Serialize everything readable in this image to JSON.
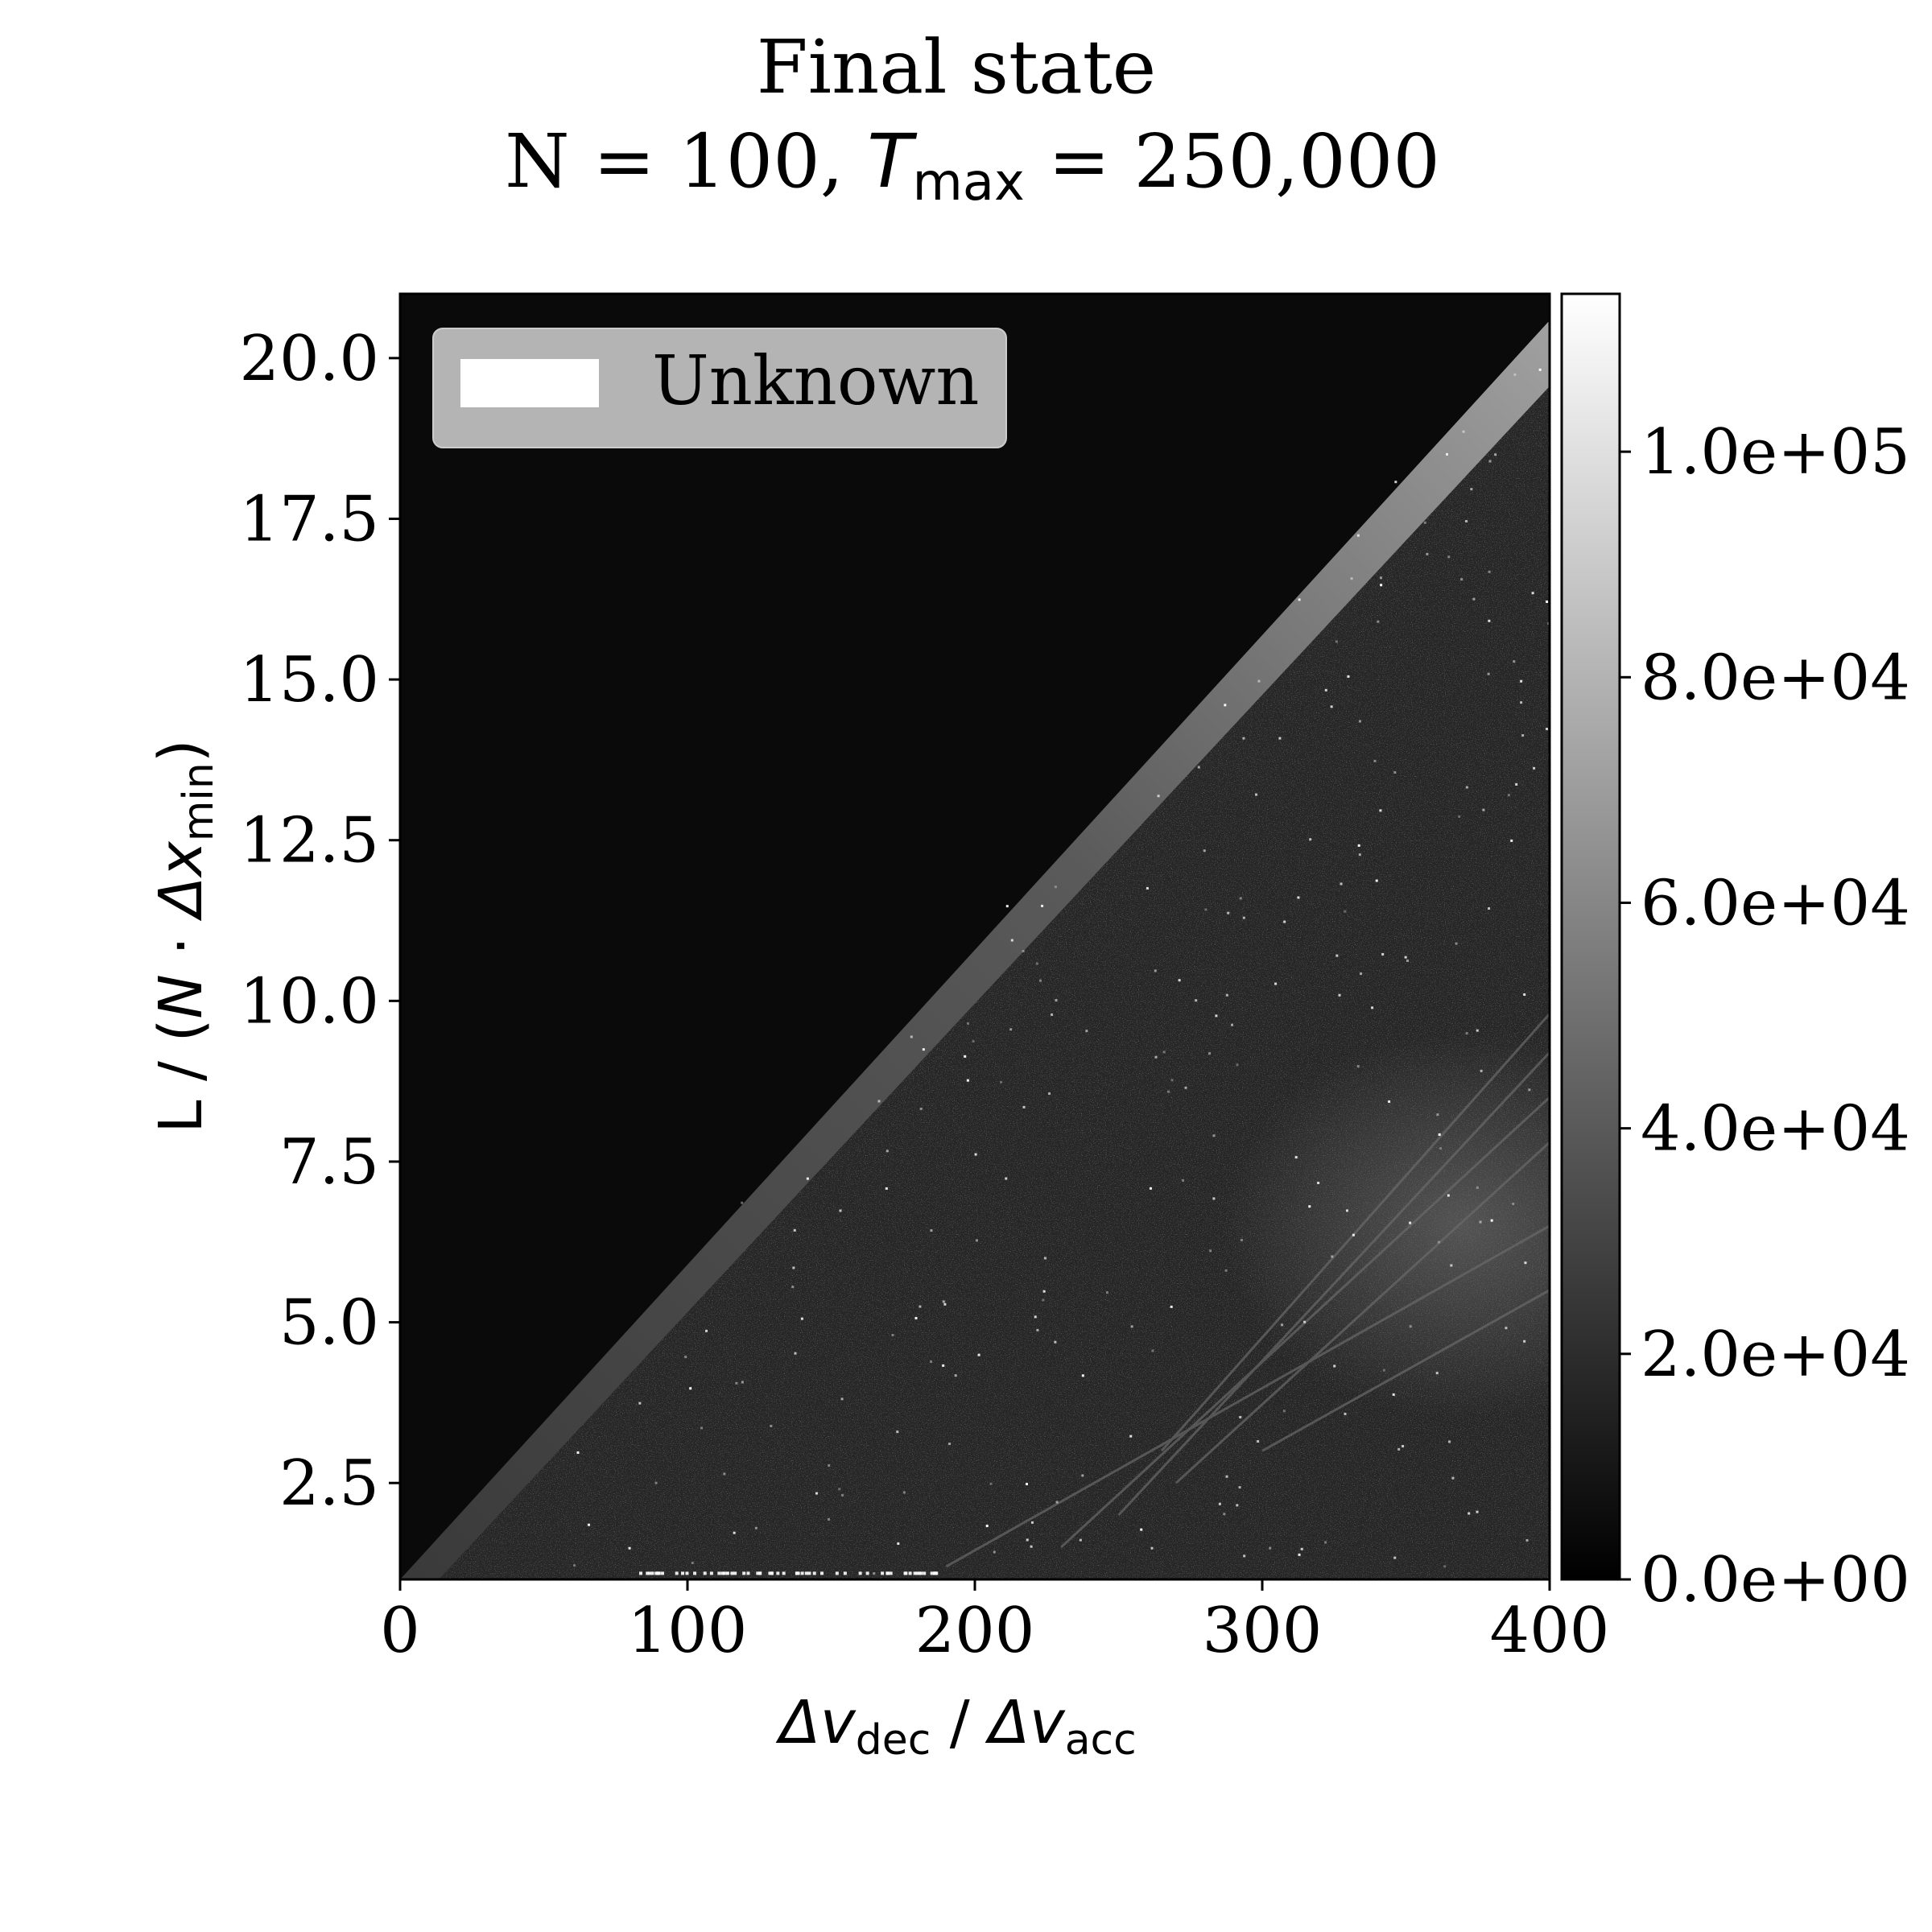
{
  "chart_data": {
    "type": "heatmap",
    "title": {
      "line1": "Final state",
      "line2_prefix": "N = 100, ",
      "line2_var": "T",
      "line2_sub": "max",
      "line2_suffix": " = 250,000"
    },
    "xlabel": {
      "var1": "Δv",
      "sub1": "dec",
      "sep": " / ",
      "var2": "Δv",
      "sub2": "acc"
    },
    "ylabel": {
      "prefix": "L / (",
      "var1": "N",
      "dot": " · ",
      "var2": "Δx",
      "sub": "min",
      "suffix": ")"
    },
    "xlim": [
      0,
      400
    ],
    "ylim": [
      1.0,
      21.0
    ],
    "x_ticks": [
      {
        "value": 0,
        "label": "0"
      },
      {
        "value": 100,
        "label": "100"
      },
      {
        "value": 200,
        "label": "200"
      },
      {
        "value": 300,
        "label": "300"
      },
      {
        "value": 400,
        "label": "400"
      }
    ],
    "y_ticks": [
      {
        "value": 2.5,
        "label": "2.5"
      },
      {
        "value": 5.0,
        "label": "5.0"
      },
      {
        "value": 7.5,
        "label": "7.5"
      },
      {
        "value": 10.0,
        "label": "10.0"
      },
      {
        "value": 12.5,
        "label": "12.5"
      },
      {
        "value": 15.0,
        "label": "15.0"
      },
      {
        "value": 17.5,
        "label": "17.5"
      },
      {
        "value": 20.0,
        "label": "20.0"
      }
    ],
    "colorbar": {
      "colormap": "gray",
      "min": 0,
      "max": 114000,
      "ticks": [
        {
          "value": 0,
          "label": "0.0e+00"
        },
        {
          "value": 20000,
          "label": "2.0e+04"
        },
        {
          "value": 40000,
          "label": "4.0e+04"
        },
        {
          "value": 60000,
          "label": "6.0e+04"
        },
        {
          "value": 80000,
          "label": "8.0e+04"
        },
        {
          "value": 100000,
          "label": "1.0e+05"
        }
      ]
    },
    "legend": {
      "position": "top-left",
      "entries": [
        {
          "label": "Unknown",
          "color": "#ffffff"
        }
      ]
    },
    "regions": [
      {
        "name": "upper-left region",
        "value_level": 0.04,
        "boundary_line": {
          "from": [
            0,
            1.0
          ],
          "to": [
            400,
            21.0
          ]
        }
      },
      {
        "name": "boundary band",
        "value_level": 0.45,
        "along_line": {
          "from": [
            270,
            16.0
          ],
          "to": [
            400,
            21.0
          ]
        }
      },
      {
        "name": "lower-right region",
        "value_level": 0.15
      },
      {
        "name": "bright cluster",
        "value_level": 0.4,
        "center": [
          370,
          6.5
        ]
      }
    ],
    "grid": false
  }
}
